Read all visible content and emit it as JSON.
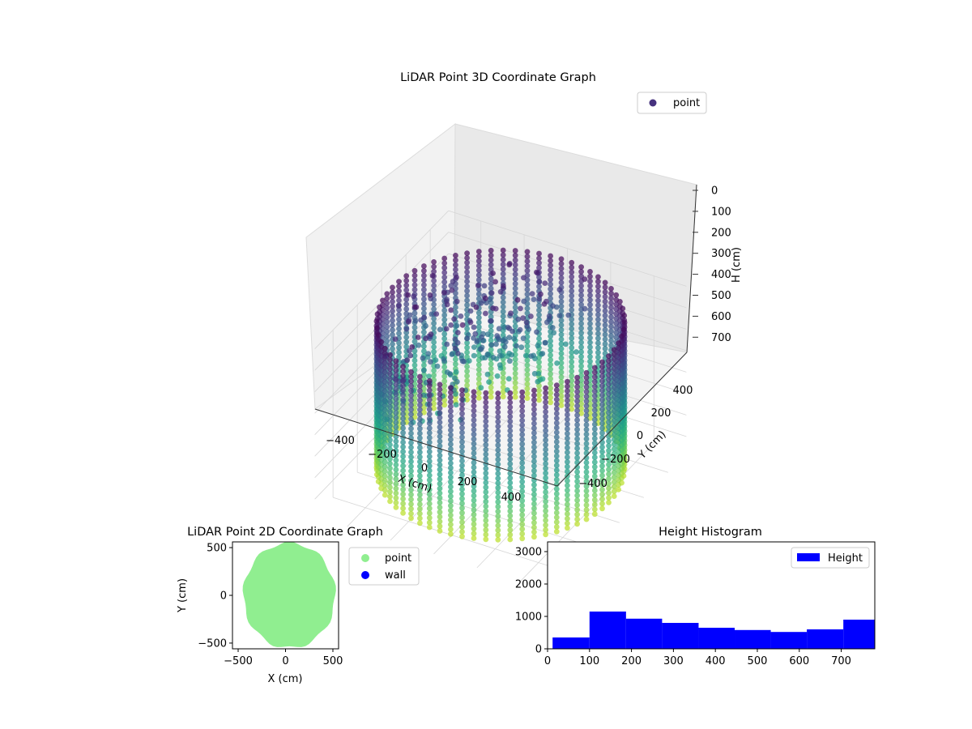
{
  "chart_data": [
    {
      "type": "scatter",
      "projection": "3d",
      "title": "LiDAR Point 3D Coordinate Graph",
      "xlabel": "X (cm)",
      "ylabel": "Y (cm)",
      "zlabel": "H (cm)",
      "x_ticks": [
        "−400",
        "−200",
        "0",
        "200",
        "400"
      ],
      "y_ticks": [
        "−400",
        "−200",
        "0",
        "200",
        "400"
      ],
      "z_ticks": [
        "0",
        "100",
        "200",
        "300",
        "400",
        "500",
        "600",
        "700"
      ],
      "xlim": [
        -550,
        550
      ],
      "ylim": [
        -550,
        550
      ],
      "zlim": [
        0,
        780
      ],
      "z_inverted": true,
      "colormap": "viridis",
      "legend": {
        "position": "top-right",
        "entries": [
          {
            "label": "point",
            "color": "#46327e"
          }
        ]
      },
      "series": [
        {
          "name": "point",
          "description_x": [],
          "y": []
        }
      ],
      "ring": {
        "radius": 500,
        "h_top": 20,
        "h_bottom": 720
      },
      "grid": true
    },
    {
      "type": "scatter",
      "title": "LiDAR Point 2D Coordinate Graph",
      "xlabel": "X (cm)",
      "ylabel": "Y (cm)",
      "x_ticks": [
        "−500",
        "0",
        "500"
      ],
      "y_ticks": [
        "−500",
        "0",
        "500"
      ],
      "xlim": [
        -560,
        560
      ],
      "ylim": [
        -560,
        560
      ],
      "legend": {
        "position": "outside-right",
        "entries": [
          {
            "label": "point",
            "color": "#90ee90"
          },
          {
            "label": "wall",
            "color": "#0000ff"
          }
        ]
      },
      "series": [
        {
          "name": "point",
          "color": "#90ee90",
          "region": "disc",
          "radius": 550
        },
        {
          "name": "wall",
          "color": "#0000ff",
          "values": []
        }
      ],
      "grid": false
    },
    {
      "type": "bar",
      "subtype": "histogram",
      "title": "Height Histogram",
      "xlabel": "",
      "ylabel": "",
      "x_ticks": [
        "0",
        "100",
        "200",
        "300",
        "400",
        "500",
        "600",
        "700"
      ],
      "y_ticks": [
        "0",
        "1000",
        "2000",
        "3000"
      ],
      "xlim": [
        0,
        780
      ],
      "ylim": [
        0,
        3300
      ],
      "bin_edges": [
        12,
        100,
        187,
        273,
        360,
        446,
        532,
        618,
        705,
        790
      ],
      "values": [
        350,
        1150,
        930,
        800,
        650,
        580,
        520,
        600,
        900
      ],
      "color": "#0000ff",
      "legend": {
        "position": "top-right",
        "entries": [
          {
            "label": "Height",
            "color": "#0000ff"
          }
        ]
      },
      "grid": false
    }
  ]
}
